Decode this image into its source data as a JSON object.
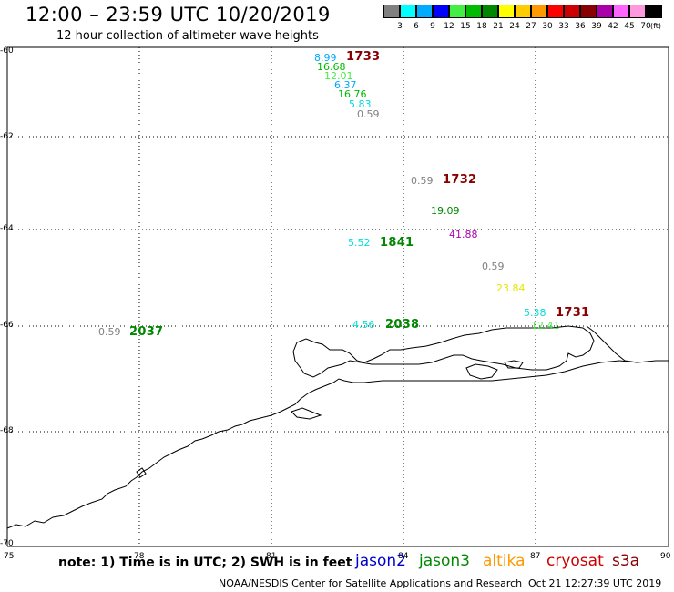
{
  "header": {
    "title": "12:00 – 23:59 UTC 10/20/2019",
    "subtitle": "12 hour collection of altimeter wave heights"
  },
  "colorbar": {
    "unit_label": "(ft)",
    "swatches": [
      {
        "color": "#808080",
        "label": "3"
      },
      {
        "color": "#00ffff",
        "label": "6"
      },
      {
        "color": "#00aaff",
        "label": "9"
      },
      {
        "color": "#0000ff",
        "label": "12"
      },
      {
        "color": "#44ee44",
        "label": "15"
      },
      {
        "color": "#00bb00",
        "label": "18"
      },
      {
        "color": "#008800",
        "label": "21"
      },
      {
        "color": "#ffff00",
        "label": "24"
      },
      {
        "color": "#ffcc00",
        "label": "27"
      },
      {
        "color": "#ff9900",
        "label": "30"
      },
      {
        "color": "#ff0000",
        "label": "33"
      },
      {
        "color": "#cc0000",
        "label": "36"
      },
      {
        "color": "#880000",
        "label": "39"
      },
      {
        "color": "#aa00aa",
        "label": "42"
      },
      {
        "color": "#ff66ff",
        "label": "45"
      },
      {
        "color": "#ff99dd",
        "label": "70"
      },
      {
        "color": "#000000",
        "label": ""
      }
    ]
  },
  "axes": {
    "lat_labels": [
      "-60",
      "-62",
      "-64",
      "-66",
      "-68",
      "-70"
    ],
    "lon_labels": [
      "75",
      "78",
      "81",
      "84",
      "87",
      "90"
    ]
  },
  "wave_values": [
    {
      "text": "8.99",
      "color": "#00aaff"
    },
    {
      "text": "16.68",
      "color": "#00bb00"
    },
    {
      "text": "12.01",
      "color": "#44ee44"
    },
    {
      "text": "6.37",
      "color": "#00aaff"
    },
    {
      "text": "16.76",
      "color": "#00bb00"
    },
    {
      "text": "5.83",
      "color": "#00dddd"
    },
    {
      "text": "0.59",
      "color": "#808080"
    },
    {
      "text": "0.59",
      "color": "#808080"
    },
    {
      "text": "19.09",
      "color": "#008800"
    },
    {
      "text": "41.88",
      "color": "#aa00aa"
    },
    {
      "text": "5.52",
      "color": "#00dddd"
    },
    {
      "text": "0.59",
      "color": "#808080"
    },
    {
      "text": "23.84",
      "color": "#e6e600"
    },
    {
      "text": "5.38",
      "color": "#00dddd"
    },
    {
      "text": "12.41",
      "color": "#44ee44"
    },
    {
      "text": "4.56",
      "color": "#00dddd"
    },
    {
      "text": "0.59",
      "color": "#808080"
    }
  ],
  "pass_times": [
    {
      "text": "1733",
      "color": "#880000"
    },
    {
      "text": "1732",
      "color": "#880000"
    },
    {
      "text": "1841",
      "color": "#008800"
    },
    {
      "text": "1731",
      "color": "#880000"
    },
    {
      "text": "2038",
      "color": "#008800"
    },
    {
      "text": "2037",
      "color": "#008800"
    }
  ],
  "footer": {
    "note": "note: 1) Time is in UTC; 2) SWH is in feet",
    "satellites": [
      {
        "name": "jason2",
        "color": "#0000cc"
      },
      {
        "name": "jason3",
        "color": "#008800"
      },
      {
        "name": "altika",
        "color": "#ff9900"
      },
      {
        "name": "cryosat",
        "color": "#cc0000"
      },
      {
        "name": "s3a",
        "color": "#880000"
      }
    ],
    "credit": "NOAA/NESDIS Center for Satellite Applications and Research",
    "timestamp": "Oct 21 12:27:39 UTC 2019"
  }
}
